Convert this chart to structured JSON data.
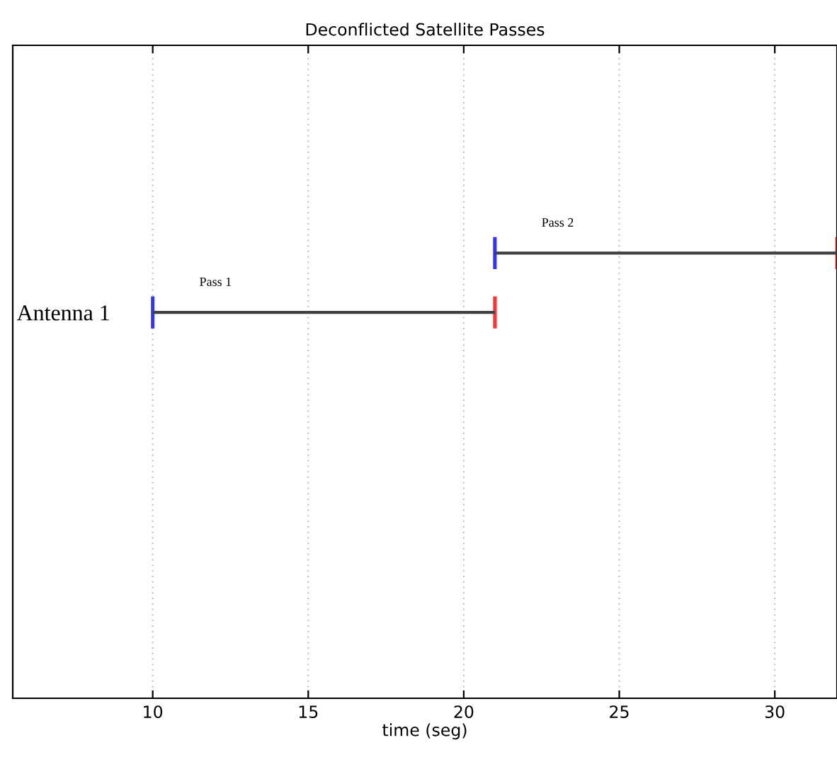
{
  "chart_data": {
    "type": "bar",
    "orientation": "horizontal",
    "title": "Deconflicted Satellite Passes",
    "xlabel": "time (seg)",
    "categories": [
      null,
      null,
      null,
      null,
      "Antenna 1",
      null,
      null,
      null,
      null,
      null,
      null
    ],
    "base": [
      null,
      null,
      null,
      21,
      10,
      null,
      null,
      null,
      null,
      null,
      null
    ],
    "values": [
      null,
      null,
      null,
      11,
      11,
      null,
      null,
      null,
      null,
      null,
      null
    ],
    "color": "#404040",
    "xlim": [
      5.5,
      32
    ],
    "xticks": [
      10,
      15,
      20,
      25,
      30
    ],
    "grid": "x",
    "annotations": [
      "Pass 2",
      "Pass 1"
    ]
  }
}
